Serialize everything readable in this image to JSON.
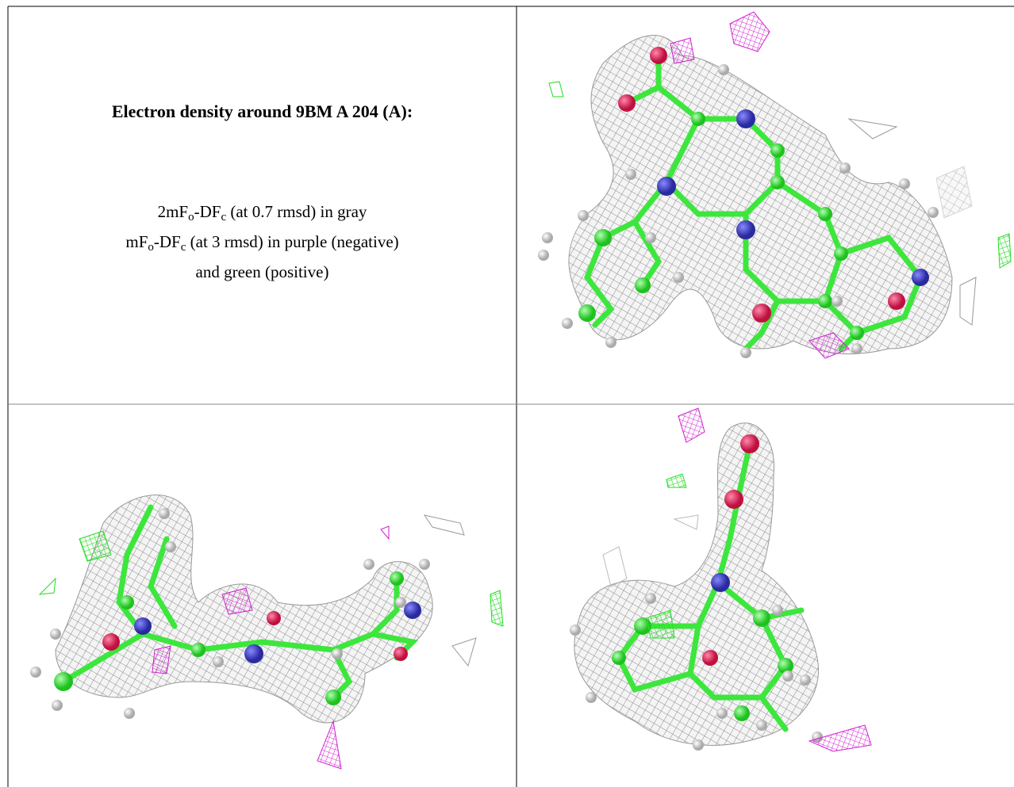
{
  "figure": {
    "title": "Electron density around 9BM A 204 (A):",
    "caption_lines": [
      [
        "2mF",
        "o",
        "-DF",
        "c",
        " (at 0.7 rmsd) in gray"
      ],
      [
        "mF",
        "o",
        "-DF",
        "c",
        " (at 3 rmsd) in purple (negative)"
      ],
      [
        "and green (positive)"
      ]
    ]
  }
}
